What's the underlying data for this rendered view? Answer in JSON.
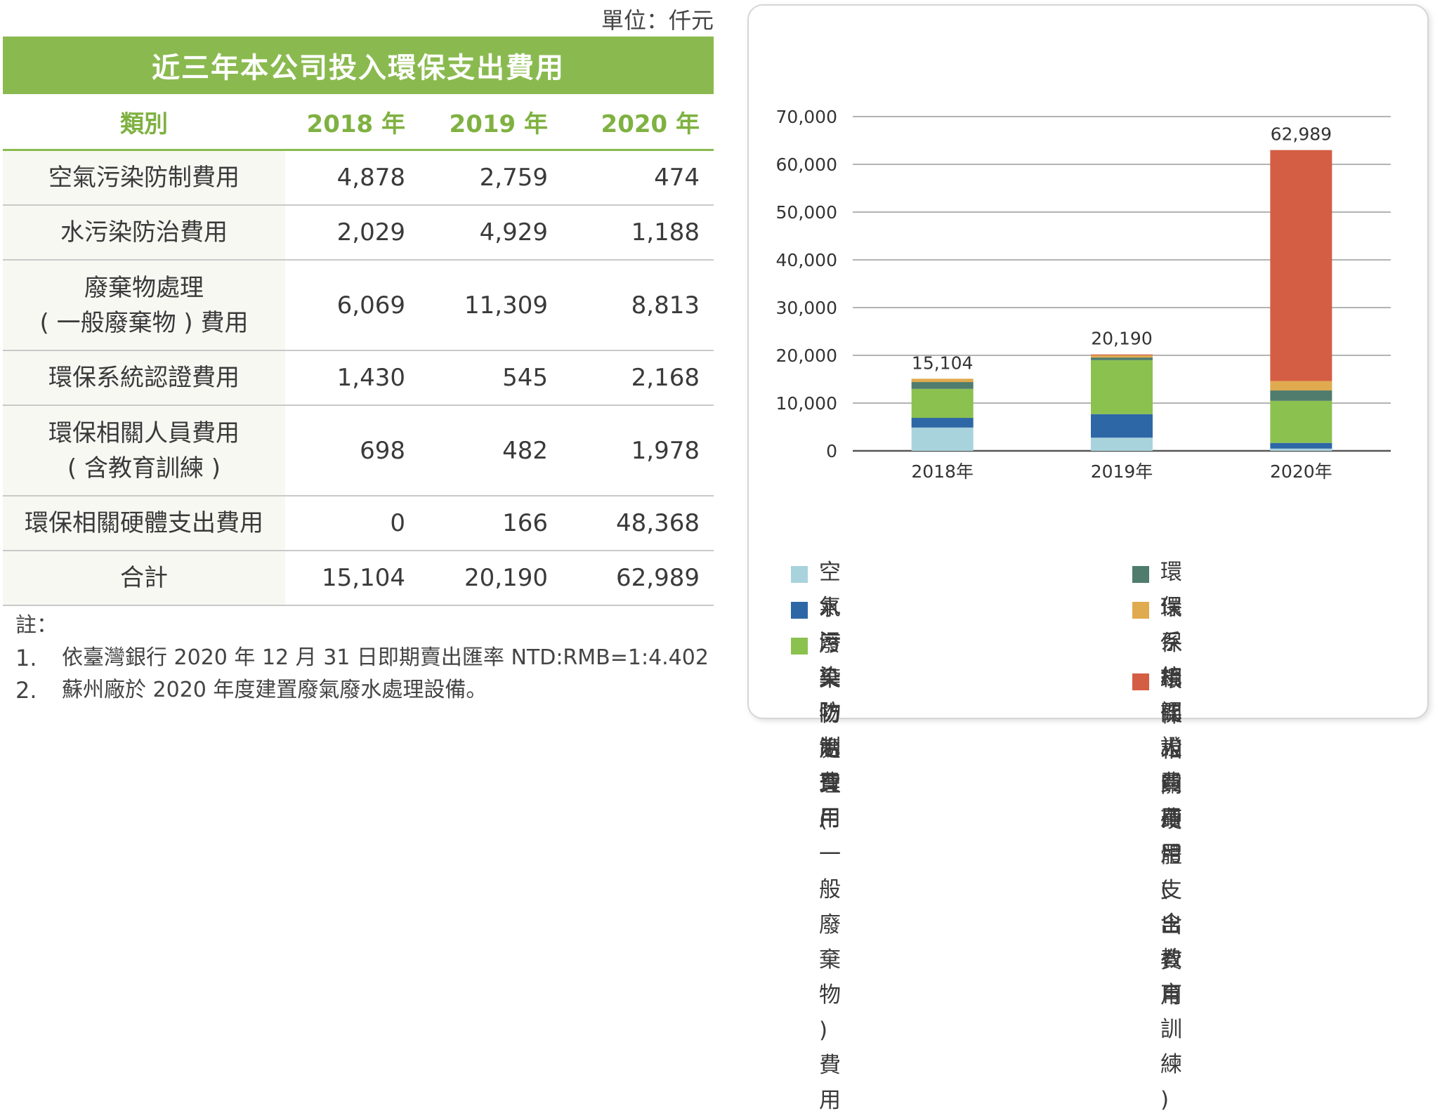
{
  "unit_label": "單位：仟元",
  "table": {
    "title": "近三年本公司投入環保支出費用",
    "headers": [
      "類別",
      "2018 年",
      "2019 年",
      "2020 年"
    ],
    "rows": [
      {
        "label_lines": [
          "空氣污染防制費用"
        ],
        "values": [
          "4,878",
          "2,759",
          "474"
        ]
      },
      {
        "label_lines": [
          "水污染防治費用"
        ],
        "values": [
          "2,029",
          "4,929",
          "1,188"
        ]
      },
      {
        "label_lines": [
          "廢棄物處理",
          "( 一般廢棄物 ) 費用"
        ],
        "values": [
          "6,069",
          "11,309",
          "8,813"
        ]
      },
      {
        "label_lines": [
          "環保系統認證費用"
        ],
        "values": [
          "1,430",
          "545",
          "2,168"
        ]
      },
      {
        "label_lines": [
          "環保相關人員費用",
          "( 含教育訓練 )"
        ],
        "values": [
          "698",
          "482",
          "1,978"
        ]
      },
      {
        "label_lines": [
          "環保相關硬體支出費用"
        ],
        "values": [
          "0",
          "166",
          "48,368"
        ]
      },
      {
        "label_lines": [
          "合計"
        ],
        "values": [
          "15,104",
          "20,190",
          "62,989"
        ]
      }
    ]
  },
  "notes": {
    "heading": "註：",
    "items": [
      {
        "num": "1.",
        "text": "依臺灣銀行 2020 年 12 月 31 日即期賣出匯率 NTD:RMB=1:4.402"
      },
      {
        "num": "2.",
        "text": "蘇州廠於 2020 年度建置廢氣廢水處理設備。"
      }
    ]
  },
  "chart_data": {
    "type": "bar",
    "stacked": true,
    "categories": [
      "2018年",
      "2019年",
      "2020年"
    ],
    "ylim": [
      0,
      70000
    ],
    "yticks": [
      0,
      10000,
      20000,
      30000,
      40000,
      50000,
      60000,
      70000
    ],
    "ytick_labels": [
      "0",
      "10,000",
      "20,000",
      "30,000",
      "40,000",
      "50,000",
      "60,000",
      "70,000"
    ],
    "totals": [
      15104,
      20190,
      62989
    ],
    "total_labels": [
      "15,104",
      "20,190",
      "62,989"
    ],
    "grid": true,
    "legend_position": "bottom",
    "series": [
      {
        "name": "空氣污染防制費用",
        "color": "#a8d3dc",
        "values": [
          4878,
          2759,
          474
        ]
      },
      {
        "name": "水污染防治費用",
        "color": "#2e67a6",
        "values": [
          2029,
          4929,
          1188
        ]
      },
      {
        "name": "廢棄物處理 ( 一般廢棄物 ) 費用",
        "legend_lines": [
          "廢棄物處理 ( 一般廢棄物 )",
          "費用"
        ],
        "color": "#8bc14f",
        "values": [
          6069,
          11309,
          8813
        ]
      },
      {
        "name": "環保系統認證費用",
        "color": "#4f7c6c",
        "values": [
          1430,
          545,
          2168
        ]
      },
      {
        "name": "環保相關人員費用 ( 含教育訓練 )",
        "legend_lines": [
          "環保相關人員費用",
          "( 含教育訓練 )"
        ],
        "color": "#e0aa4f",
        "values": [
          698,
          482,
          1978
        ]
      },
      {
        "name": "環保相關硬體支出費用",
        "color": "#d45e44",
        "values": [
          0,
          166,
          48368
        ]
      }
    ]
  }
}
